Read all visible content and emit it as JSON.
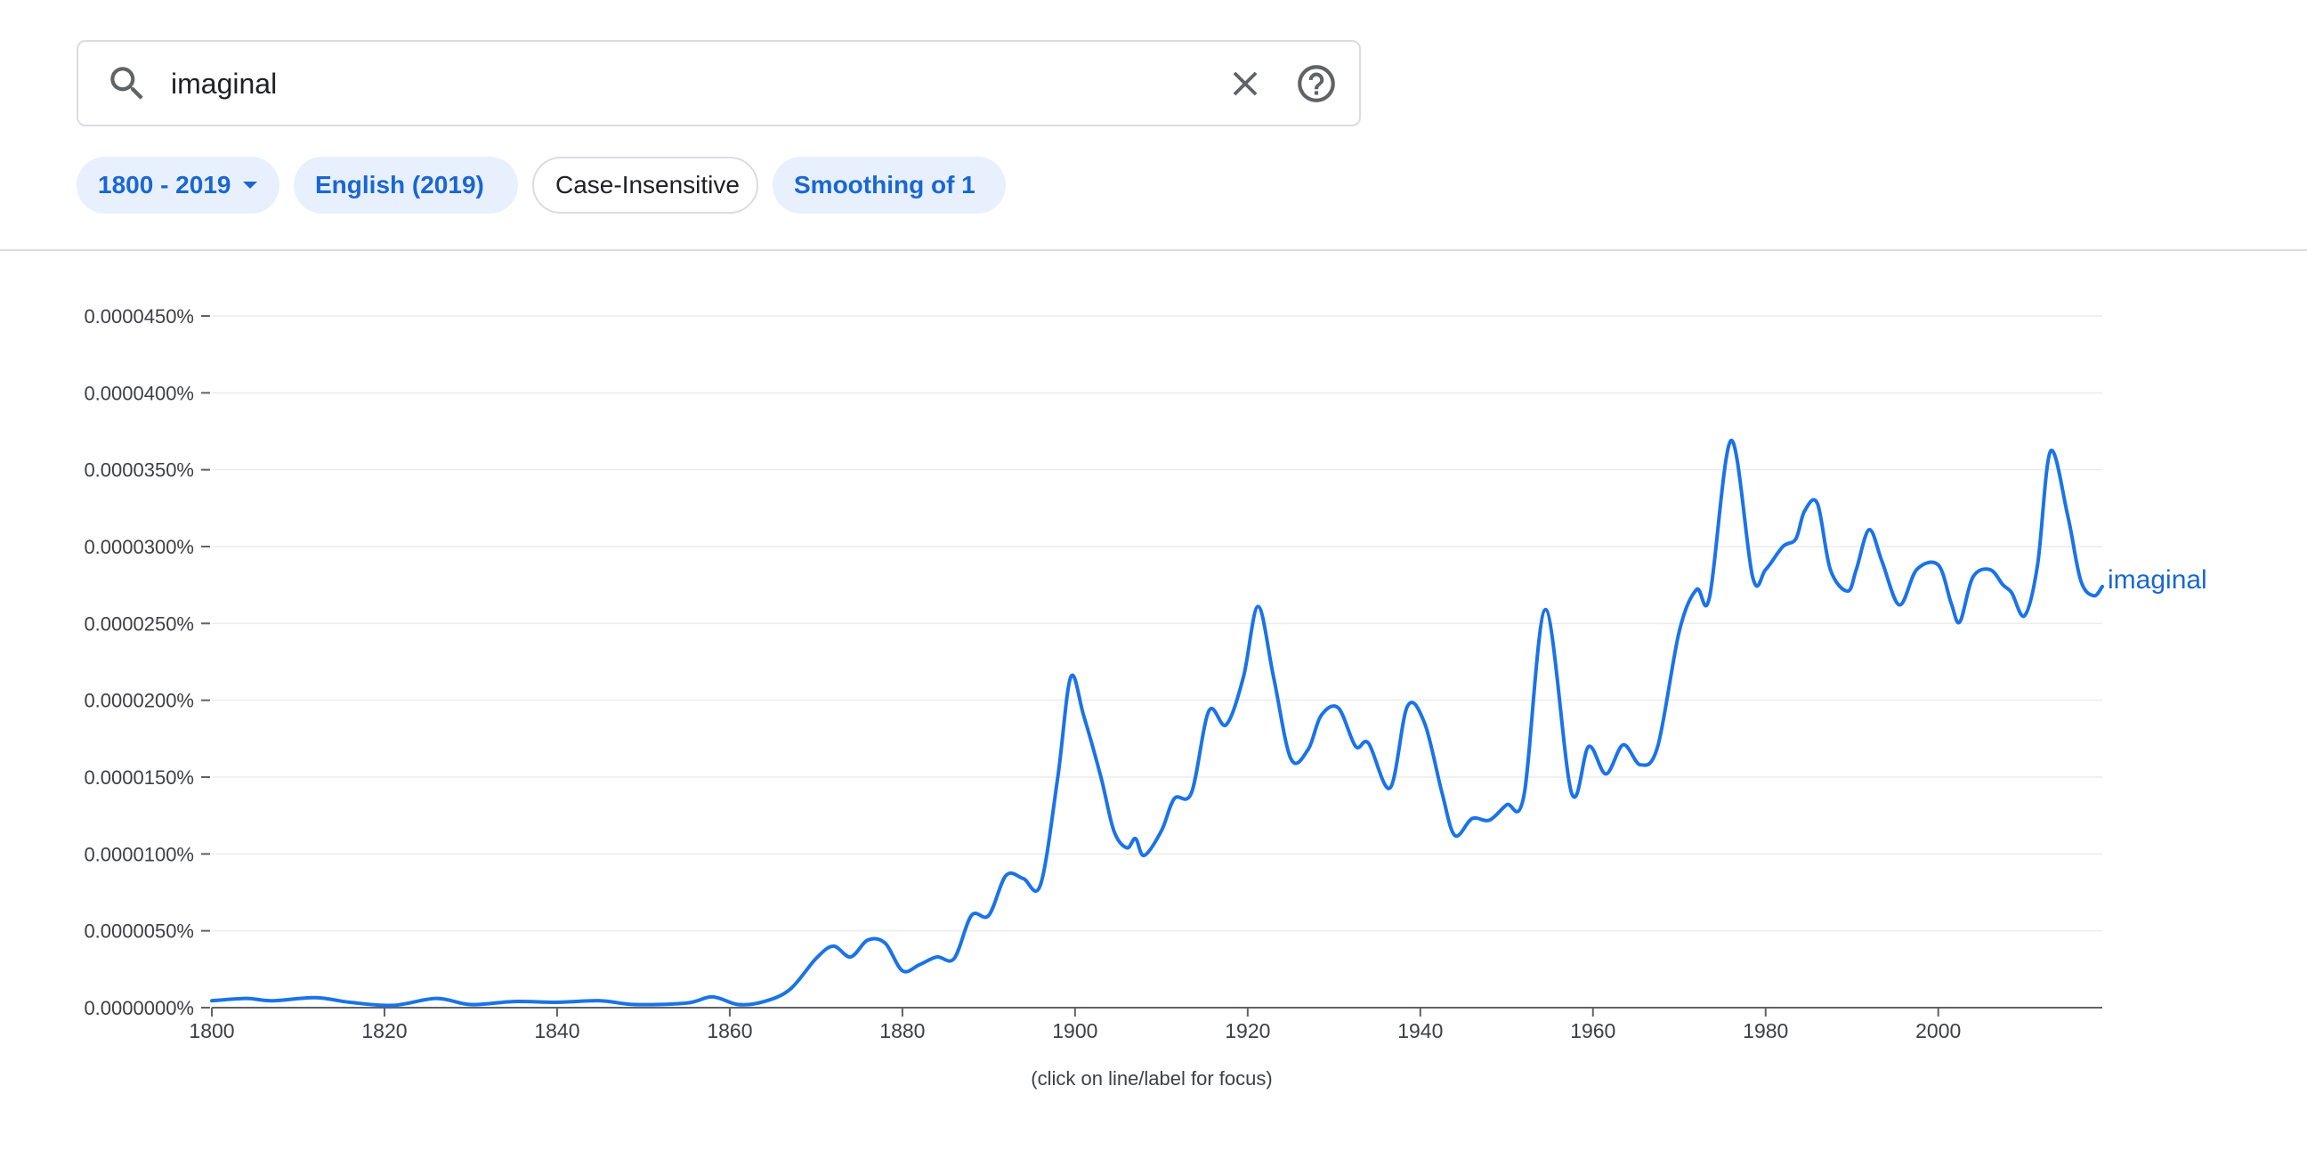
{
  "search": {
    "value": "imaginal"
  },
  "chips": [
    {
      "label": "1800 - 2019",
      "style": "blue",
      "dropdown": true
    },
    {
      "label": "English (2019)",
      "style": "blue",
      "dropdown": true
    },
    {
      "label": "Case-Insensitive",
      "style": "plain",
      "dropdown": false
    },
    {
      "label": "Smoothing of 1",
      "style": "blue",
      "dropdown": true
    }
  ],
  "footnote": "(click on line/label for focus)",
  "colors": {
    "accent": "#1967d2",
    "line": "#1a73e8",
    "chip_bg": "#e8f0fe",
    "border": "#dadce0"
  },
  "chart_data": {
    "type": "line",
    "title": "",
    "xlabel": "",
    "ylabel": "",
    "xlim": [
      1800,
      2019
    ],
    "ylim": [
      0,
      4.5e-07
    ],
    "y_ticks": [
      "0.0000000%",
      "0.0000050%",
      "0.0000100%",
      "0.0000150%",
      "0.0000200%",
      "0.0000250%",
      "0.0000300%",
      "0.0000350%",
      "0.0000400%",
      "0.0000450%"
    ],
    "x_ticks": [
      "1800",
      "1820",
      "1840",
      "1860",
      "1880",
      "1900",
      "1920",
      "1940",
      "1960",
      "1980",
      "2000"
    ],
    "grid": true,
    "legend": "line-end label",
    "series": [
      {
        "name": "imaginal",
        "points": [
          [
            1800,
            4.5e-09
          ],
          [
            1804,
            6e-09
          ],
          [
            1807,
            4.5e-09
          ],
          [
            1812,
            6.5e-09
          ],
          [
            1816,
            3.5e-09
          ],
          [
            1821,
            1.5e-09
          ],
          [
            1826,
            6e-09
          ],
          [
            1830,
            2e-09
          ],
          [
            1835,
            4e-09
          ],
          [
            1840,
            3.5e-09
          ],
          [
            1845,
            4.5e-09
          ],
          [
            1849,
            2e-09
          ],
          [
            1855,
            3e-09
          ],
          [
            1858,
            7e-09
          ],
          [
            1861,
            2e-09
          ],
          [
            1864,
            4e-09
          ],
          [
            1867,
            1.2e-08
          ],
          [
            1870,
            3.2e-08
          ],
          [
            1872,
            4e-08
          ],
          [
            1874,
            3.3e-08
          ],
          [
            1876,
            4.4e-08
          ],
          [
            1878,
            4.2e-08
          ],
          [
            1880,
            2.4e-08
          ],
          [
            1882,
            2.8e-08
          ],
          [
            1884,
            3.3e-08
          ],
          [
            1886,
            3.2e-08
          ],
          [
            1888,
            6e-08
          ],
          [
            1890,
            6e-08
          ],
          [
            1892,
            8.6e-08
          ],
          [
            1894,
            8.4e-08
          ],
          [
            1896,
            8e-08
          ],
          [
            1898,
            1.5e-07
          ],
          [
            1899.5,
            2.15e-07
          ],
          [
            1901,
            1.9e-07
          ],
          [
            1903,
            1.5e-07
          ],
          [
            1904.5,
            1.15e-07
          ],
          [
            1906,
            1.04e-07
          ],
          [
            1907,
            1.1e-07
          ],
          [
            1908,
            9.9e-08
          ],
          [
            1910,
            1.15e-07
          ],
          [
            1911.5,
            1.36e-07
          ],
          [
            1913.5,
            1.4e-07
          ],
          [
            1915.5,
            1.93e-07
          ],
          [
            1917.5,
            1.84e-07
          ],
          [
            1919.5,
            2.15e-07
          ],
          [
            1921.2,
            2.61e-07
          ],
          [
            1923,
            2.15e-07
          ],
          [
            1925,
            1.62e-07
          ],
          [
            1927,
            1.68e-07
          ],
          [
            1928.5,
            1.9e-07
          ],
          [
            1930.5,
            1.95e-07
          ],
          [
            1932.5,
            1.7e-07
          ],
          [
            1934,
            1.72e-07
          ],
          [
            1936.5,
            1.43e-07
          ],
          [
            1938.5,
            1.96e-07
          ],
          [
            1940.5,
            1.85e-07
          ],
          [
            1942.5,
            1.4e-07
          ],
          [
            1944,
            1.12e-07
          ],
          [
            1946,
            1.23e-07
          ],
          [
            1948,
            1.22e-07
          ],
          [
            1950,
            1.32e-07
          ],
          [
            1952,
            1.38e-07
          ],
          [
            1954.5,
            2.59e-07
          ],
          [
            1957.5,
            1.4e-07
          ],
          [
            1959.5,
            1.7e-07
          ],
          [
            1961.5,
            1.52e-07
          ],
          [
            1963.5,
            1.71e-07
          ],
          [
            1965.5,
            1.58e-07
          ],
          [
            1967.5,
            1.7e-07
          ],
          [
            1970,
            2.45e-07
          ],
          [
            1972,
            2.72e-07
          ],
          [
            1973.5,
            2.67e-07
          ],
          [
            1976,
            3.69e-07
          ],
          [
            1978.5,
            2.8e-07
          ],
          [
            1980,
            2.85e-07
          ],
          [
            1982,
            3e-07
          ],
          [
            1983.5,
            3.05e-07
          ],
          [
            1984.5,
            3.23e-07
          ],
          [
            1986,
            3.28e-07
          ],
          [
            1987.5,
            2.85e-07
          ],
          [
            1989.5,
            2.71e-07
          ],
          [
            1990.5,
            2.85e-07
          ],
          [
            1992,
            3.11e-07
          ],
          [
            1993.5,
            2.9e-07
          ],
          [
            1995.5,
            2.62e-07
          ],
          [
            1997.5,
            2.85e-07
          ],
          [
            2000,
            2.88e-07
          ],
          [
            2001.5,
            2.63e-07
          ],
          [
            2002.5,
            2.51e-07
          ],
          [
            2004,
            2.8e-07
          ],
          [
            2006,
            2.85e-07
          ],
          [
            2007.5,
            2.75e-07
          ],
          [
            2008.5,
            2.7e-07
          ],
          [
            2010,
            2.55e-07
          ],
          [
            2011.5,
            2.88e-07
          ],
          [
            2013,
            3.62e-07
          ],
          [
            2015,
            3.2e-07
          ],
          [
            2016.5,
            2.78e-07
          ],
          [
            2018,
            2.68e-07
          ],
          [
            2019,
            2.74e-07
          ]
        ]
      }
    ]
  }
}
